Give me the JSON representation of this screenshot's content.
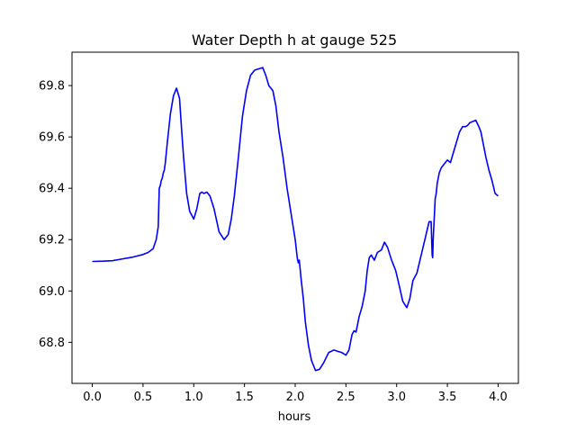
{
  "chart_data": {
    "type": "line",
    "title": "Water Depth h at gauge 525",
    "xlabel": "hours",
    "ylabel": "",
    "xlim": [
      -0.2,
      4.2
    ],
    "ylim": [
      68.64,
      69.93
    ],
    "xticks": [
      0.0,
      0.5,
      1.0,
      1.5,
      2.0,
      2.5,
      3.0,
      3.5,
      4.0
    ],
    "xtick_labels": [
      "0.0",
      "0.5",
      "1.0",
      "1.5",
      "2.0",
      "2.5",
      "3.0",
      "3.5",
      "4.0"
    ],
    "yticks": [
      68.8,
      69.0,
      69.2,
      69.4,
      69.6,
      69.8
    ],
    "ytick_labels": [
      "68.8",
      "69.0",
      "69.2",
      "69.4",
      "69.6",
      "69.8"
    ],
    "grid": false,
    "line_color": "#0000ff",
    "series": [
      {
        "x": [
          0.0,
          0.1,
          0.2,
          0.3,
          0.4,
          0.5,
          0.55,
          0.6,
          0.63,
          0.65,
          0.66,
          0.67,
          0.68,
          0.69,
          0.7,
          0.71,
          0.72,
          0.74,
          0.77,
          0.8,
          0.83,
          0.86,
          0.88,
          0.9,
          0.93,
          0.96,
          1.0,
          1.03,
          1.06,
          1.08,
          1.1,
          1.13,
          1.16,
          1.2,
          1.25,
          1.3,
          1.34,
          1.37,
          1.4,
          1.44,
          1.48,
          1.52,
          1.56,
          1.6,
          1.64,
          1.68,
          1.71,
          1.74,
          1.78,
          1.81,
          1.84,
          1.88,
          1.92,
          1.96,
          2.0,
          2.02,
          2.03,
          2.04,
          2.06,
          2.08,
          2.1,
          2.13,
          2.16,
          2.2,
          2.24,
          2.28,
          2.33,
          2.38,
          2.42,
          2.46,
          2.5,
          2.53,
          2.56,
          2.58,
          2.6,
          2.63,
          2.66,
          2.69,
          2.71,
          2.73,
          2.75,
          2.78,
          2.81,
          2.85,
          2.88,
          2.91,
          2.95,
          2.99,
          3.02,
          3.06,
          3.1,
          3.13,
          3.16,
          3.2,
          3.23,
          3.26,
          3.29,
          3.32,
          3.34,
          3.35,
          3.355,
          3.36,
          3.38,
          3.39,
          3.4,
          3.42,
          3.44,
          3.46,
          3.48,
          3.5,
          3.53,
          3.56,
          3.59,
          3.62,
          3.65,
          3.68,
          3.7,
          3.72,
          3.75,
          3.78,
          3.81,
          3.83,
          3.85,
          3.88,
          3.91,
          3.94,
          3.97,
          4.0
        ],
        "y": [
          69.115,
          69.116,
          69.118,
          69.125,
          69.132,
          69.142,
          69.15,
          69.165,
          69.2,
          69.25,
          69.4,
          69.41,
          69.43,
          69.44,
          69.46,
          69.47,
          69.5,
          69.58,
          69.69,
          69.76,
          69.79,
          69.75,
          69.63,
          69.52,
          69.38,
          69.31,
          69.28,
          69.32,
          69.38,
          69.385,
          69.38,
          69.385,
          69.37,
          69.32,
          69.23,
          69.2,
          69.22,
          69.28,
          69.37,
          69.52,
          69.68,
          69.78,
          69.84,
          69.86,
          69.865,
          69.87,
          69.84,
          69.8,
          69.78,
          69.72,
          69.62,
          69.52,
          69.4,
          69.3,
          69.2,
          69.13,
          69.11,
          69.12,
          69.04,
          68.97,
          68.88,
          68.79,
          68.73,
          68.69,
          68.695,
          68.72,
          68.76,
          68.77,
          68.765,
          68.76,
          68.75,
          68.77,
          68.83,
          68.845,
          68.84,
          68.9,
          68.94,
          69.0,
          69.08,
          69.13,
          69.14,
          69.12,
          69.15,
          69.16,
          69.19,
          69.17,
          69.12,
          69.08,
          69.03,
          68.96,
          68.935,
          68.97,
          69.04,
          69.07,
          69.12,
          69.17,
          69.22,
          69.27,
          69.27,
          69.14,
          69.13,
          69.2,
          69.36,
          69.38,
          69.42,
          69.46,
          69.48,
          69.49,
          69.5,
          69.51,
          69.5,
          69.54,
          69.58,
          69.62,
          69.64,
          69.64,
          69.645,
          69.655,
          69.66,
          69.665,
          69.64,
          69.62,
          69.58,
          69.52,
          69.47,
          69.43,
          69.38,
          69.37
        ]
      }
    ]
  }
}
